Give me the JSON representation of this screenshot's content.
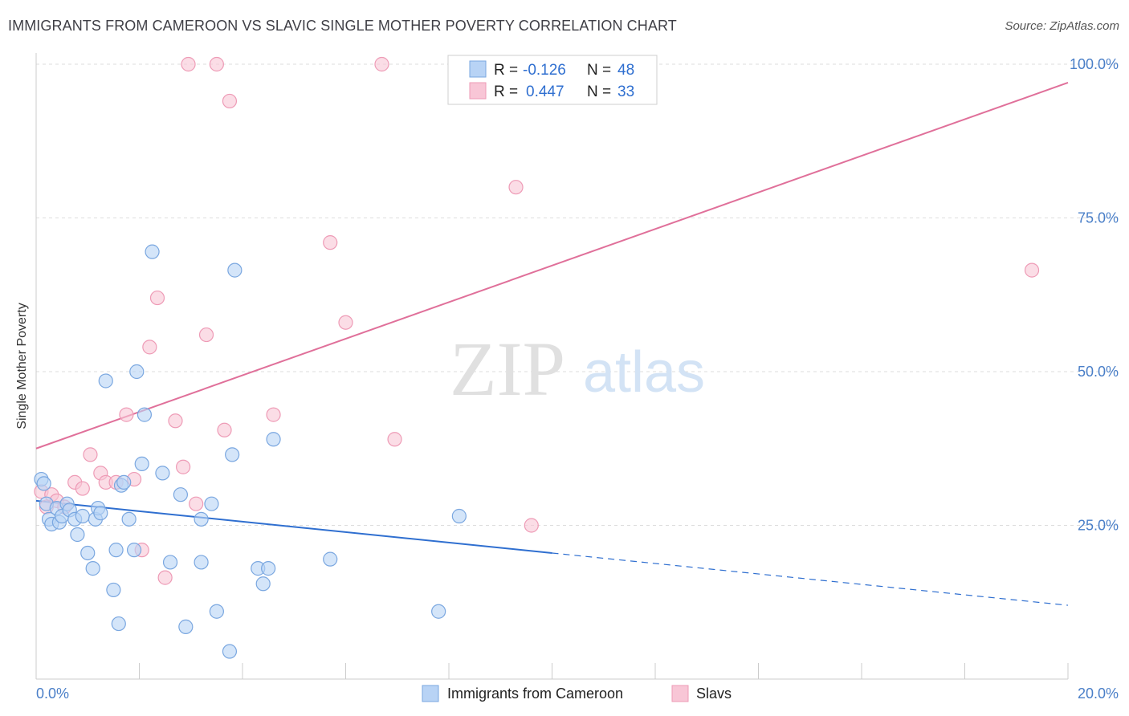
{
  "title": "IMMIGRANTS FROM CAMEROON VS SLAVIC SINGLE MOTHER POVERTY CORRELATION CHART",
  "source": "Source: ZipAtlas.com",
  "watermark": {
    "zip": "ZIP",
    "atlas": "atlas"
  },
  "legend": {
    "rows": [
      {
        "r_label": "R =",
        "r_value": "-0.126",
        "n_label": "N =",
        "n_value": "48"
      },
      {
        "r_label": "R =",
        "r_value": "0.447",
        "n_label": "N =",
        "n_value": "33"
      }
    ]
  },
  "colors": {
    "blue_fill": "#b8d3f5",
    "blue_stroke": "#7aa7e0",
    "blue_line": "#2f6fd0",
    "pink_fill": "#f8c6d6",
    "pink_stroke": "#ee9bb6",
    "pink_line": "#e0709a",
    "tick": "#4a7fc8",
    "grid": "#dddddd"
  },
  "chart_data": {
    "type": "scatter",
    "title": "IMMIGRANTS FROM CAMEROON VS SLAVIC SINGLE MOTHER POVERTY CORRELATION CHART",
    "xlabel": "",
    "ylabel": "Single Mother Poverty",
    "xlim": [
      0,
      20
    ],
    "ylim": [
      0,
      100
    ],
    "x_ticks": [
      "0.0%",
      "20.0%"
    ],
    "y_ticks": [
      "25.0%",
      "50.0%",
      "75.0%",
      "100.0%"
    ],
    "y_tick_values": [
      25,
      50,
      75,
      100
    ],
    "grid": true,
    "legend_position": "top-center",
    "series": [
      {
        "name": "Immigrants from Cameroon",
        "color": "#b8d3f5",
        "points": [
          [
            0.1,
            32.5
          ],
          [
            0.15,
            31.8
          ],
          [
            0.2,
            28.5
          ],
          [
            0.25,
            26.0
          ],
          [
            0.3,
            25.2
          ],
          [
            0.4,
            27.8
          ],
          [
            0.45,
            25.5
          ],
          [
            0.5,
            26.5
          ],
          [
            0.6,
            28.5
          ],
          [
            0.65,
            27.5
          ],
          [
            0.75,
            26.0
          ],
          [
            0.8,
            23.5
          ],
          [
            0.9,
            26.5
          ],
          [
            1.0,
            20.5
          ],
          [
            1.1,
            18.0
          ],
          [
            1.15,
            26.0
          ],
          [
            1.2,
            27.8
          ],
          [
            1.25,
            27.0
          ],
          [
            1.35,
            48.5
          ],
          [
            1.5,
            14.5
          ],
          [
            1.55,
            21.0
          ],
          [
            1.6,
            9.0
          ],
          [
            1.65,
            31.5
          ],
          [
            1.7,
            32.0
          ],
          [
            1.8,
            26.0
          ],
          [
            1.9,
            21.0
          ],
          [
            1.95,
            50.0
          ],
          [
            2.05,
            35.0
          ],
          [
            2.1,
            43.0
          ],
          [
            2.25,
            69.5
          ],
          [
            2.45,
            33.5
          ],
          [
            2.6,
            19.0
          ],
          [
            2.8,
            30.0
          ],
          [
            2.9,
            8.5
          ],
          [
            3.2,
            26.0
          ],
          [
            3.2,
            19.0
          ],
          [
            3.4,
            28.5
          ],
          [
            3.5,
            11.0
          ],
          [
            3.75,
            4.5
          ],
          [
            3.8,
            36.5
          ],
          [
            3.85,
            66.5
          ],
          [
            4.3,
            18.0
          ],
          [
            4.4,
            15.5
          ],
          [
            4.5,
            18.0
          ],
          [
            4.6,
            39.0
          ],
          [
            5.7,
            19.5
          ],
          [
            7.8,
            11.0
          ],
          [
            8.2,
            26.5
          ]
        ]
      },
      {
        "name": "Slavs",
        "color": "#f8c6d6",
        "points": [
          [
            0.1,
            30.5
          ],
          [
            0.2,
            28.0
          ],
          [
            0.3,
            30.0
          ],
          [
            0.4,
            29.0
          ],
          [
            0.55,
            28.0
          ],
          [
            0.75,
            32.0
          ],
          [
            0.9,
            31.0
          ],
          [
            1.05,
            36.5
          ],
          [
            1.25,
            33.5
          ],
          [
            1.35,
            32.0
          ],
          [
            1.55,
            32.0
          ],
          [
            1.75,
            43.0
          ],
          [
            1.9,
            32.5
          ],
          [
            2.05,
            21.0
          ],
          [
            2.2,
            54.0
          ],
          [
            2.35,
            62.0
          ],
          [
            2.5,
            16.5
          ],
          [
            2.7,
            42.0
          ],
          [
            2.85,
            34.5
          ],
          [
            2.95,
            100.0
          ],
          [
            3.1,
            28.5
          ],
          [
            3.3,
            56.0
          ],
          [
            3.5,
            100.0
          ],
          [
            3.65,
            40.5
          ],
          [
            3.75,
            94.0
          ],
          [
            4.6,
            43.0
          ],
          [
            5.7,
            71.0
          ],
          [
            6.0,
            58.0
          ],
          [
            6.7,
            100.0
          ],
          [
            6.95,
            39.0
          ],
          [
            9.3,
            80.0
          ],
          [
            9.6,
            25.0
          ],
          [
            19.3,
            66.5
          ]
        ]
      }
    ],
    "trend_lines": [
      {
        "series": "Immigrants from Cameroon",
        "x1": 0,
        "y1": 29.0,
        "x2": 10.0,
        "y2": 20.5,
        "dashed_to_x": 20,
        "dashed_to_y": 12.0
      },
      {
        "series": "Slavs",
        "x1": 0,
        "y1": 37.5,
        "x2": 20,
        "y2": 97.0
      }
    ]
  }
}
